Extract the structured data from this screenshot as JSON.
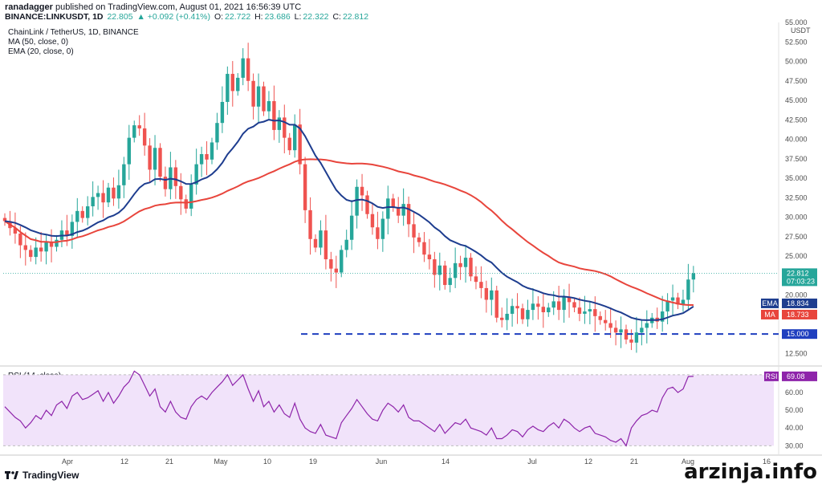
{
  "header": {
    "publisher": "ranadagger",
    "published_text": "published on TradingView.com, August 01, 2021 16:56:39 UTC",
    "symbol": "BINANCE:LINKUSDT, 1D",
    "last": "22.805",
    "change": "▲ +0.092 (+0.41%)",
    "o_label": "O:",
    "o": "22.722",
    "h_label": "H:",
    "h": "23.686",
    "l_label": "L:",
    "l": "22.322",
    "c_label": "C:",
    "c": "22.812"
  },
  "legend": {
    "title": "ChainLink / TetherUS, 1D, BINANCE",
    "ma": "MA (50, close, 0)",
    "ema": "EMA (20, close, 0)"
  },
  "rsi_legend": "RSI (14, close)",
  "footer": {
    "brand": "TradingView",
    "watermark": "arzinja.info"
  },
  "colors": {
    "up": "#26a69a",
    "down": "#ef5350",
    "ema": "#1e3d8f",
    "ma": "#e8453c",
    "rsi": "#8e24aa",
    "support": "#1f3fbf"
  },
  "chart_data": [
    {
      "type": "candlestick",
      "title": "ChainLink / TetherUS, 1D, BINANCE",
      "y_unit_label": "USDT",
      "ylim": [
        11,
        55
      ],
      "yticks": [
        "12.500",
        "15.000",
        "17.500",
        "20.000",
        "22.500",
        "25.000",
        "27.500",
        "30.000",
        "32.500",
        "35.000",
        "37.500",
        "40.000",
        "42.500",
        "45.000",
        "47.500",
        "50.000",
        "52.500",
        "55.000"
      ],
      "xticks": [
        "Apr",
        "12",
        "21",
        "May",
        "10",
        "19",
        "Jun",
        "14",
        "Jul",
        "12",
        "21",
        "Aug",
        "16"
      ],
      "close_series": [
        29.5,
        28.6,
        27.9,
        26.4,
        25.8,
        24.9,
        26.1,
        25.6,
        26.8,
        26.2,
        27.1,
        28.3,
        27.6,
        29.4,
        30.8,
        29.9,
        31.4,
        32.6,
        33.1,
        31.9,
        33.8,
        32.4,
        34.1,
        36.8,
        40.2,
        41.8,
        41.4,
        39.2,
        36.1,
        38.9,
        35.2,
        33.6,
        36.4,
        34.0,
        32.3,
        31.1,
        34.2,
        36.8,
        38.1,
        37.4,
        39.6,
        42.1,
        44.8,
        48.4,
        46.2,
        47.9,
        50.4,
        47.5,
        44.2,
        46.8,
        43.6,
        44.9,
        41.2,
        42.8,
        40.2,
        38.6,
        41.9,
        36.8,
        30.9,
        27.2,
        26.1,
        28.3,
        24.6,
        23.4,
        22.9,
        25.8,
        27.1,
        30.2,
        33.9,
        32.8,
        30.4,
        28.7,
        27.2,
        29.8,
        32.4,
        31.3,
        30.2,
        31.7,
        29.1,
        27.4,
        26.8,
        25.2,
        24.6,
        22.6,
        23.8,
        21.3,
        22.2,
        24.1,
        23.6,
        24.8,
        22.4,
        21.7,
        20.9,
        19.4,
        20.6,
        17.1,
        16.8,
        17.6,
        18.6,
        18.3,
        16.9,
        18.1,
        18.9,
        18.5,
        17.8,
        18.4,
        19.2,
        18.1,
        19.8,
        19.1,
        18.4,
        17.6,
        17.9,
        18.2,
        17.3,
        16.8,
        16.4,
        15.8,
        15.2,
        15.6,
        14.3,
        13.9,
        15.2,
        15.8,
        16.4,
        17.1,
        16.6,
        17.9,
        19.3,
        19.7,
        18.8,
        19.4,
        22.0,
        22.8
      ],
      "ma50_label": "18.733",
      "ema20_label": "18.834",
      "last_label": "22.812",
      "countdown": "07:03:23",
      "support_label": "15.000",
      "support_level": 15.0
    },
    {
      "type": "line",
      "title": "RSI (14, close)",
      "ylim": [
        27,
        74
      ],
      "yticks": [
        "30.00",
        "40.00",
        "50.00",
        "60.00",
        "70.00"
      ],
      "last_label": "69.08",
      "values": [
        52,
        49,
        46,
        44,
        40,
        43,
        47,
        45,
        50,
        47,
        53,
        55,
        51,
        58,
        60,
        56,
        57,
        59,
        61,
        55,
        60,
        54,
        58,
        63,
        66,
        72,
        70,
        64,
        58,
        62,
        52,
        49,
        55,
        49,
        46,
        45,
        52,
        56,
        58,
        56,
        60,
        63,
        66,
        70,
        64,
        67,
        70,
        62,
        55,
        61,
        52,
        55,
        49,
        53,
        48,
        46,
        54,
        45,
        40,
        38,
        37,
        42,
        36,
        35,
        34,
        43,
        47,
        51,
        56,
        52,
        48,
        45,
        44,
        50,
        54,
        52,
        49,
        53,
        46,
        44,
        44,
        42,
        40,
        38,
        42,
        37,
        40,
        43,
        42,
        45,
        40,
        39,
        38,
        36,
        40,
        34,
        34,
        36,
        39,
        38,
        35,
        39,
        41,
        39,
        38,
        41,
        43,
        40,
        45,
        43,
        40,
        38,
        40,
        41,
        37,
        36,
        35,
        33,
        32,
        34,
        30,
        40,
        44,
        47,
        48,
        50,
        49,
        57,
        62,
        63,
        60,
        62,
        69,
        69.08
      ]
    }
  ]
}
